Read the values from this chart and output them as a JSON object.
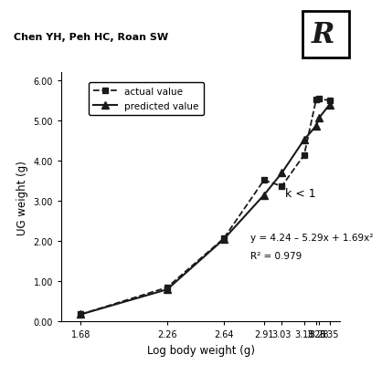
{
  "actual_x": [
    1.68,
    2.26,
    2.64,
    2.91,
    3.03,
    3.18,
    3.26,
    3.28,
    3.35
  ],
  "actual_y": [
    0.18,
    0.85,
    2.07,
    3.52,
    3.37,
    4.15,
    5.52,
    5.55,
    5.5
  ],
  "predicted_x": [
    1.68,
    2.26,
    2.64,
    2.91,
    3.03,
    3.18,
    3.26,
    3.28,
    3.35
  ],
  "predicted_y": [
    0.18,
    0.8,
    2.05,
    3.15,
    3.7,
    4.53,
    4.87,
    5.07,
    5.4
  ],
  "xlabel": "Log body weight (g)",
  "ylabel": "UG weight (g)",
  "xticks": [
    1.68,
    2.26,
    2.64,
    2.91,
    3.03,
    3.18,
    3.26,
    3.28,
    3.35
  ],
  "yticks": [
    0.0,
    1.0,
    2.0,
    3.0,
    4.0,
    5.0,
    6.0
  ],
  "ylim": [
    0.0,
    6.2
  ],
  "xlim": [
    1.55,
    3.42
  ],
  "equation": "y = 4.24 – 5.29x + 1.69x²",
  "r_squared": "R² = 0.979",
  "k_label": "k < 1",
  "legend_actual": "actual value",
  "legend_predicted": "predicted value",
  "header_text": "Chen YH, Peh HC, Roan SW",
  "line_color": "#1a1a1a",
  "bg_color": "#ffffff"
}
